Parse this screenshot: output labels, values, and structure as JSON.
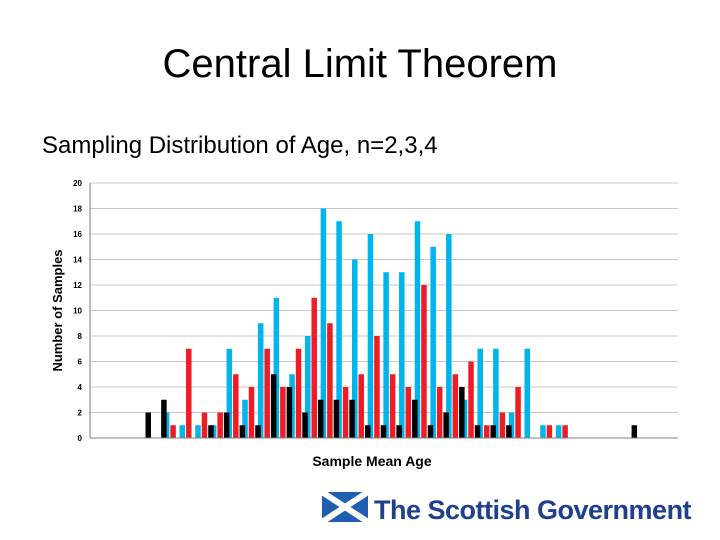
{
  "slide": {
    "title": "Central Limit Theorem",
    "subtitle": "Sampling Distribution of Age, n=2,3,4"
  },
  "footer": {
    "logo_text": "The Scottish Government",
    "logo_icon": "saltire-flag-icon",
    "logo_color": "#1f3f8f"
  },
  "chart_data": {
    "type": "bar",
    "xlabel": "Sample Mean Age",
    "ylabel": "Number of Samples",
    "ylim": [
      0,
      20
    ],
    "yticks": [
      0,
      2,
      4,
      6,
      8,
      10,
      12,
      14,
      16,
      18,
      20
    ],
    "grid": true,
    "legend": "none",
    "series": [
      {
        "color": "#00b4ec",
        "points": [
          [
            1,
            2
          ],
          [
            2,
            1
          ],
          [
            3,
            1
          ],
          [
            4,
            1
          ],
          [
            5,
            7
          ],
          [
            6,
            3
          ],
          [
            7,
            9
          ],
          [
            8,
            11
          ],
          [
            9,
            5
          ],
          [
            10,
            8
          ],
          [
            11,
            18
          ],
          [
            12,
            17
          ],
          [
            13,
            14
          ],
          [
            14,
            16
          ],
          [
            15,
            13
          ],
          [
            16,
            13
          ],
          [
            17,
            17
          ],
          [
            18,
            15
          ],
          [
            19,
            16
          ],
          [
            20,
            3
          ],
          [
            21,
            7
          ],
          [
            22,
            7
          ],
          [
            23,
            2
          ],
          [
            24,
            7
          ],
          [
            25,
            1
          ],
          [
            26,
            1
          ],
          [
            27,
            0
          ],
          [
            28,
            0
          ],
          [
            29,
            0
          ],
          [
            30,
            0
          ]
        ]
      },
      {
        "color": "#ee1c24",
        "points": [
          [
            1,
            1
          ],
          [
            2,
            7
          ],
          [
            3,
            2
          ],
          [
            4,
            2
          ],
          [
            5,
            5
          ],
          [
            6,
            4
          ],
          [
            7,
            7
          ],
          [
            8,
            4
          ],
          [
            9,
            7
          ],
          [
            10,
            11
          ],
          [
            11,
            9
          ],
          [
            12,
            4
          ],
          [
            13,
            5
          ],
          [
            14,
            8
          ],
          [
            15,
            5
          ],
          [
            16,
            4
          ],
          [
            17,
            12
          ],
          [
            18,
            4
          ],
          [
            19,
            5
          ],
          [
            20,
            6
          ],
          [
            21,
            1
          ],
          [
            22,
            2
          ],
          [
            23,
            4
          ],
          [
            24,
            0
          ],
          [
            25,
            1
          ],
          [
            26,
            1
          ]
        ]
      },
      {
        "color": "#000000",
        "points": [
          [
            -1,
            2
          ],
          [
            0,
            3
          ],
          [
            3,
            1
          ],
          [
            4,
            2
          ],
          [
            5,
            1
          ],
          [
            6,
            1
          ],
          [
            7,
            5
          ],
          [
            8,
            4
          ],
          [
            9,
            2
          ],
          [
            10,
            3
          ],
          [
            11,
            3
          ],
          [
            12,
            3
          ],
          [
            13,
            1
          ],
          [
            14,
            1
          ],
          [
            15,
            1
          ],
          [
            16,
            3
          ],
          [
            17,
            1
          ],
          [
            18,
            2
          ],
          [
            19,
            4
          ],
          [
            20,
            1
          ],
          [
            21,
            1
          ],
          [
            22,
            1
          ],
          [
            30,
            1
          ]
        ]
      }
    ]
  }
}
